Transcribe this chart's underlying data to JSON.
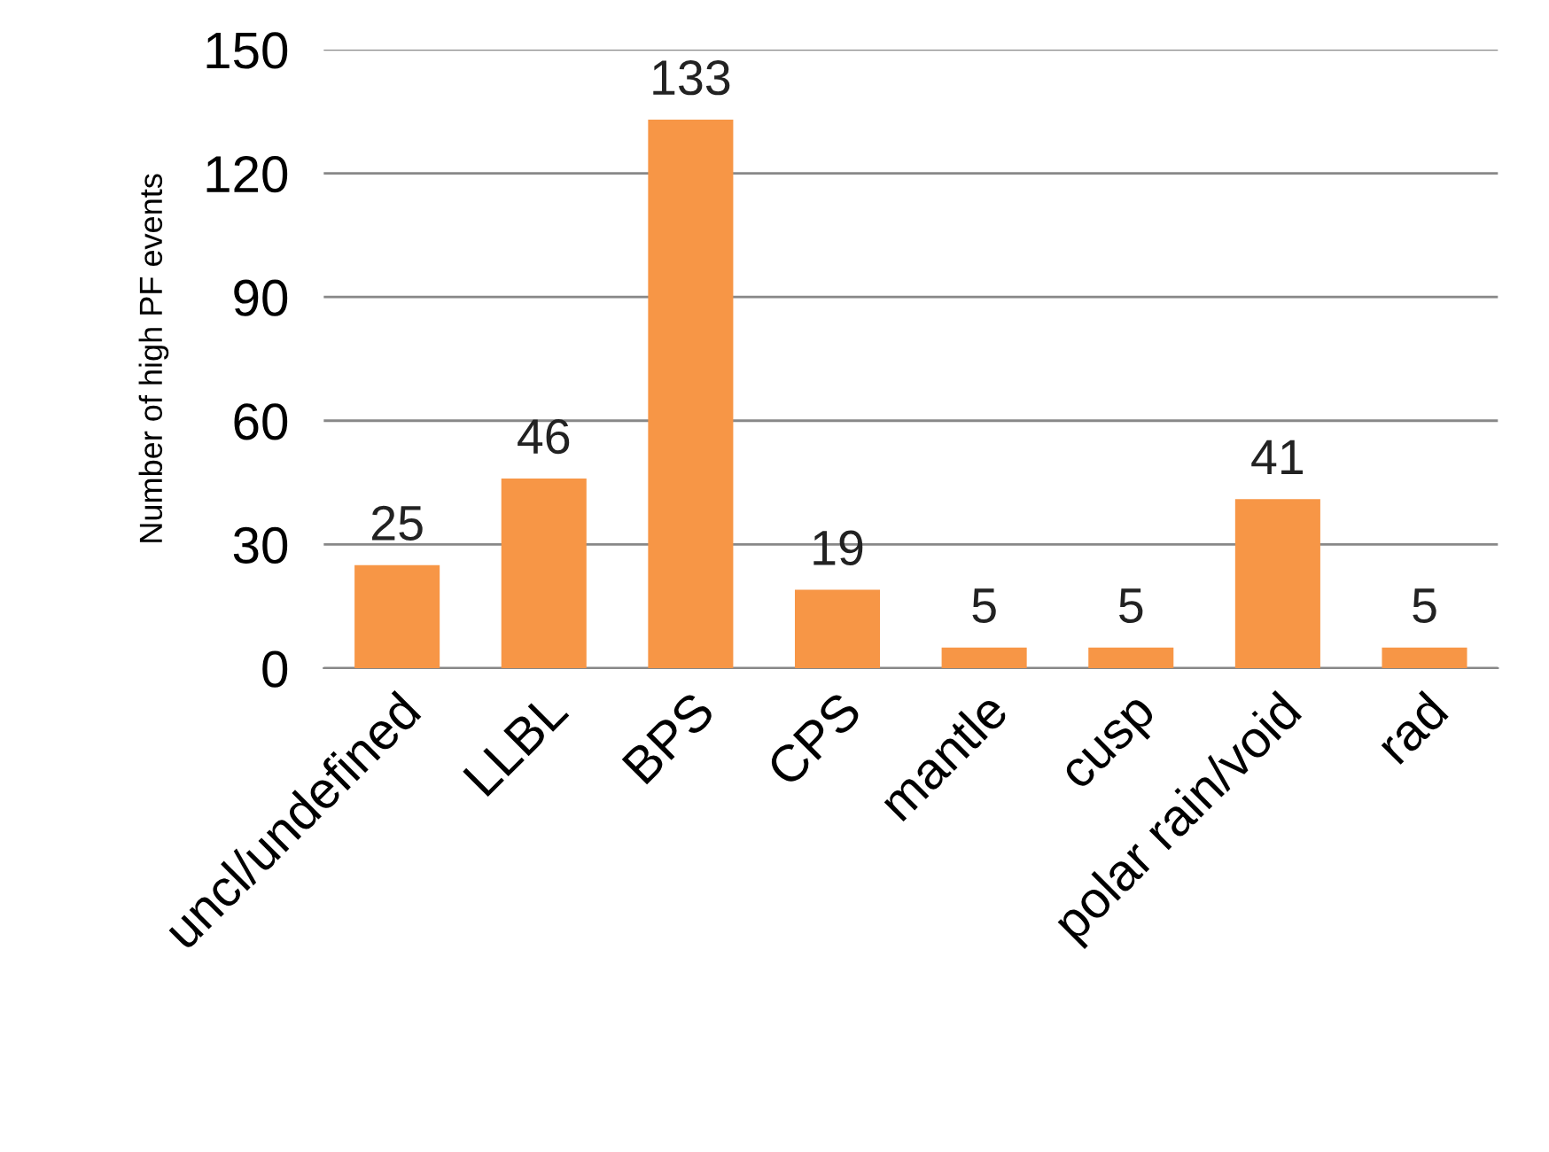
{
  "chart_data": {
    "type": "bar",
    "ylabel": "Number of high PF events",
    "categories": [
      "uncl/undefined",
      "LLBL",
      "BPS",
      "CPS",
      "mantle",
      "cusp",
      "polar rain/void",
      "rad"
    ],
    "values": [
      25,
      46,
      133,
      19,
      5,
      5,
      41,
      5
    ],
    "color": "#f79646",
    "ylim": [
      0,
      150
    ],
    "yticks": [
      0,
      30,
      60,
      90,
      120,
      150
    ],
    "grid": "y",
    "data_labels": true
  }
}
